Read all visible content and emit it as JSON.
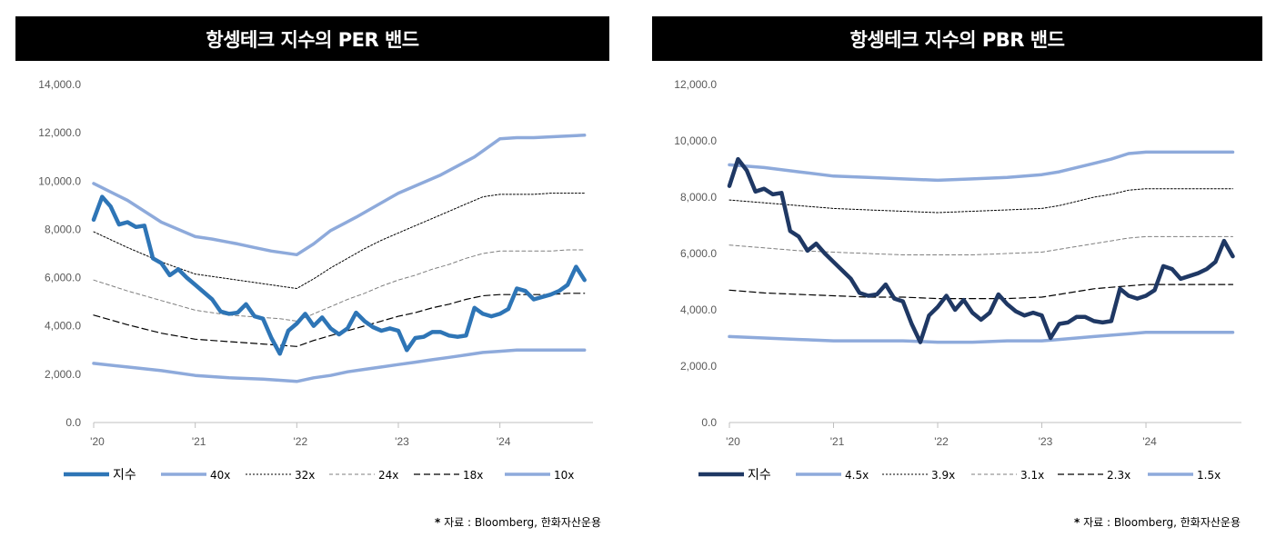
{
  "sources": {
    "left": {
      "star": "*",
      "text": " 자료 : Bloomberg, 한화자산운용"
    },
    "right": {
      "star": "*",
      "text": " 자료 : Bloomberg, 한화자산운용"
    }
  },
  "chart_data": [
    {
      "type": "line",
      "title": "항셍테크 지수의 PER 밴드",
      "ylim": [
        0,
        14000
      ],
      "yticks": [
        0,
        2000,
        4000,
        6000,
        8000,
        10000,
        12000,
        14000
      ],
      "ytick_labels": [
        "0.0",
        "2,000.0",
        "4,000.0",
        "6,000.0",
        "8,000.0",
        "10,000.0",
        "12,000.0",
        "14,000.0"
      ],
      "xlim": [
        0,
        59
      ],
      "xticks": [
        0,
        12,
        24,
        36,
        48
      ],
      "xtick_labels": [
        "'20",
        "'21",
        "'22",
        "'23",
        "'24"
      ],
      "colors": {
        "index": "#2e75b6",
        "band": "#8eaadb",
        "dash": "#000000",
        "dash_light": "#7f7f7f",
        "axis": "#bfbfbf",
        "tick_text": "#595959"
      },
      "series": [
        {
          "name": "지수",
          "style": "index",
          "x": [
            0,
            1,
            2,
            3,
            4,
            5,
            6,
            7,
            8,
            9,
            10,
            11,
            12,
            13,
            14,
            15,
            16,
            17,
            18,
            19,
            20,
            21,
            22,
            23,
            24,
            25,
            26,
            27,
            28,
            29,
            30,
            31,
            32,
            33,
            34,
            35,
            36,
            37,
            38,
            39,
            40,
            41,
            42,
            43,
            44,
            45,
            46,
            47,
            48,
            49,
            50,
            51,
            52,
            53,
            54,
            55,
            56,
            57,
            58
          ],
          "values": [
            8400,
            9350,
            8950,
            8200,
            8300,
            8100,
            8150,
            6800,
            6600,
            6100,
            6350,
            6000,
            5700,
            5400,
            5100,
            4600,
            4500,
            4550,
            4900,
            4400,
            4300,
            3500,
            2850,
            3800,
            4100,
            4500,
            4000,
            4350,
            3900,
            3650,
            3900,
            4550,
            4200,
            3950,
            3800,
            3900,
            3800,
            3000,
            3500,
            3550,
            3750,
            3750,
            3600,
            3550,
            3600,
            4750,
            4500,
            4400,
            4500,
            4700,
            5550,
            5450,
            5100,
            5200,
            5300,
            5450,
            5700,
            6450,
            5900
          ]
        },
        {
          "name": "40x",
          "style": "band",
          "x": [
            0,
            4,
            8,
            12,
            14,
            17,
            19,
            21,
            24,
            26,
            28,
            31,
            33,
            35,
            36,
            38,
            41,
            45,
            48,
            50,
            52,
            55,
            58
          ],
          "values": [
            9900,
            9200,
            8300,
            7700,
            7600,
            7400,
            7250,
            7100,
            6950,
            7400,
            7950,
            8500,
            8900,
            9300,
            9500,
            9800,
            10250,
            11000,
            11750,
            11800,
            11800,
            11850,
            11900
          ]
        },
        {
          "name": "32x",
          "style": "dash",
          "x": [
            0,
            4,
            8,
            12,
            16,
            20,
            22,
            24,
            26,
            28,
            30,
            32,
            34,
            36,
            38,
            40,
            42,
            44,
            46,
            48,
            50,
            52,
            54,
            56,
            58
          ],
          "values": [
            7900,
            7250,
            6650,
            6150,
            5950,
            5750,
            5650,
            5550,
            5950,
            6400,
            6800,
            7200,
            7550,
            7850,
            8150,
            8450,
            8750,
            9050,
            9350,
            9450,
            9450,
            9450,
            9500,
            9500,
            9500
          ]
        },
        {
          "name": "24x",
          "style": "dash_light",
          "x": [
            0,
            4,
            8,
            12,
            16,
            20,
            22,
            24,
            26,
            28,
            30,
            32,
            34,
            36,
            38,
            40,
            42,
            44,
            46,
            48,
            50,
            52,
            54,
            56,
            58
          ],
          "values": [
            5900,
            5450,
            5050,
            4650,
            4450,
            4350,
            4300,
            4200,
            4500,
            4800,
            5100,
            5350,
            5650,
            5900,
            6100,
            6350,
            6550,
            6800,
            7000,
            7100,
            7100,
            7100,
            7100,
            7150,
            7150
          ]
        },
        {
          "name": "18x",
          "style": "dash_long",
          "x": [
            0,
            4,
            8,
            12,
            16,
            20,
            22,
            24,
            26,
            28,
            30,
            32,
            34,
            36,
            38,
            40,
            42,
            44,
            46,
            48,
            50,
            52,
            54,
            56,
            58
          ],
          "values": [
            4450,
            4050,
            3700,
            3450,
            3350,
            3250,
            3200,
            3150,
            3400,
            3600,
            3800,
            4000,
            4200,
            4400,
            4550,
            4750,
            4900,
            5100,
            5250,
            5300,
            5300,
            5300,
            5300,
            5350,
            5350
          ]
        },
        {
          "name": "10x",
          "style": "band",
          "x": [
            0,
            4,
            8,
            12,
            16,
            20,
            22,
            24,
            26,
            28,
            30,
            32,
            34,
            36,
            38,
            40,
            42,
            44,
            46,
            48,
            50,
            52,
            54,
            56,
            58
          ],
          "values": [
            2450,
            2300,
            2150,
            1950,
            1850,
            1800,
            1750,
            1700,
            1850,
            1950,
            2100,
            2200,
            2300,
            2400,
            2500,
            2600,
            2700,
            2800,
            2900,
            2950,
            3000,
            3000,
            3000,
            3000,
            3000
          ]
        }
      ]
    },
    {
      "type": "line",
      "title": "항셍테크 지수의 PBR 밴드",
      "ylim": [
        0,
        12000
      ],
      "yticks": [
        0,
        2000,
        4000,
        6000,
        8000,
        10000,
        12000
      ],
      "ytick_labels": [
        "0.0",
        "2,000.0",
        "4,000.0",
        "6,000.0",
        "8,000.0",
        "10,000.0",
        "12,000.0"
      ],
      "xlim": [
        0,
        59
      ],
      "xticks": [
        0,
        12,
        24,
        36,
        48
      ],
      "xtick_labels": [
        "'20",
        "'21",
        "'22",
        "'23",
        "'24"
      ],
      "colors": {
        "index": "#1f3864",
        "band": "#8eaadb",
        "dash": "#000000",
        "dash_light": "#7f7f7f",
        "axis": "#bfbfbf",
        "tick_text": "#595959"
      },
      "series": [
        {
          "name": "지수",
          "style": "index",
          "x": [
            0,
            1,
            2,
            3,
            4,
            5,
            6,
            7,
            8,
            9,
            10,
            11,
            12,
            13,
            14,
            15,
            16,
            17,
            18,
            19,
            20,
            21,
            22,
            23,
            24,
            25,
            26,
            27,
            28,
            29,
            30,
            31,
            32,
            33,
            34,
            35,
            36,
            37,
            38,
            39,
            40,
            41,
            42,
            43,
            44,
            45,
            46,
            47,
            48,
            49,
            50,
            51,
            52,
            53,
            54,
            55,
            56,
            57,
            58
          ],
          "values": [
            8400,
            9350,
            8950,
            8200,
            8300,
            8100,
            8150,
            6800,
            6600,
            6100,
            6350,
            6000,
            5700,
            5400,
            5100,
            4600,
            4500,
            4550,
            4900,
            4400,
            4300,
            3500,
            2850,
            3800,
            4100,
            4500,
            4000,
            4350,
            3900,
            3650,
            3900,
            4550,
            4200,
            3950,
            3800,
            3900,
            3800,
            3000,
            3500,
            3550,
            3750,
            3750,
            3600,
            3550,
            3600,
            4750,
            4500,
            4400,
            4500,
            4700,
            5550,
            5450,
            5100,
            5200,
            5300,
            5450,
            5700,
            6450,
            5900
          ]
        },
        {
          "name": "4.5x",
          "style": "band",
          "x": [
            0,
            4,
            8,
            12,
            16,
            20,
            24,
            28,
            32,
            36,
            38,
            40,
            42,
            44,
            46,
            48,
            50,
            52,
            54,
            56,
            58
          ],
          "values": [
            9150,
            9050,
            8900,
            8750,
            8700,
            8650,
            8600,
            8650,
            8700,
            8800,
            8900,
            9050,
            9200,
            9350,
            9550,
            9600,
            9600,
            9600,
            9600,
            9600,
            9600
          ]
        },
        {
          "name": "3.9x",
          "style": "dash",
          "x": [
            0,
            4,
            8,
            12,
            16,
            20,
            24,
            28,
            32,
            36,
            38,
            40,
            42,
            44,
            46,
            48,
            50,
            52,
            54,
            56,
            58
          ],
          "values": [
            7900,
            7800,
            7700,
            7600,
            7550,
            7500,
            7450,
            7500,
            7550,
            7600,
            7700,
            7850,
            8000,
            8100,
            8250,
            8300,
            8300,
            8300,
            8300,
            8300,
            8300
          ]
        },
        {
          "name": "3.1x",
          "style": "dash_light",
          "x": [
            0,
            4,
            8,
            12,
            16,
            20,
            24,
            28,
            32,
            36,
            38,
            40,
            42,
            44,
            46,
            48,
            50,
            52,
            54,
            56,
            58
          ],
          "values": [
            6300,
            6200,
            6100,
            6050,
            6000,
            5950,
            5950,
            5950,
            6000,
            6050,
            6150,
            6250,
            6350,
            6450,
            6550,
            6600,
            6600,
            6600,
            6600,
            6600,
            6600
          ]
        },
        {
          "name": "2.3x",
          "style": "dash_long",
          "x": [
            0,
            4,
            8,
            12,
            16,
            20,
            24,
            28,
            32,
            36,
            38,
            40,
            42,
            44,
            46,
            48,
            50,
            52,
            54,
            56,
            58
          ],
          "values": [
            4700,
            4600,
            4550,
            4500,
            4450,
            4450,
            4400,
            4400,
            4400,
            4450,
            4550,
            4650,
            4750,
            4800,
            4850,
            4900,
            4900,
            4900,
            4900,
            4900,
            4900
          ]
        },
        {
          "name": "1.5x",
          "style": "band",
          "x": [
            0,
            4,
            8,
            12,
            16,
            20,
            24,
            28,
            32,
            36,
            38,
            40,
            42,
            44,
            46,
            48,
            50,
            52,
            54,
            56,
            58
          ],
          "values": [
            3050,
            3000,
            2950,
            2900,
            2900,
            2900,
            2850,
            2850,
            2900,
            2900,
            2950,
            3000,
            3050,
            3100,
            3150,
            3200,
            3200,
            3200,
            3200,
            3200,
            3200
          ]
        }
      ]
    }
  ]
}
